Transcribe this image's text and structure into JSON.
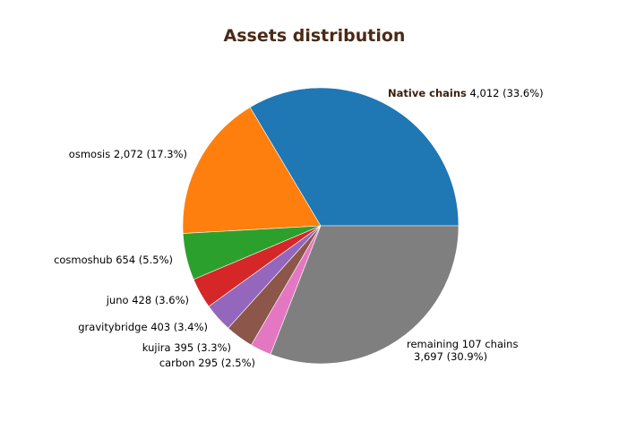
{
  "chart_data": {
    "type": "pie",
    "title": "Assets distribution",
    "start_angle_deg": 0,
    "direction": "counterclockwise",
    "slices": [
      {
        "name": "Native chains",
        "value_text": "4,012 (33.6%)",
        "value": 4012,
        "percent": 33.6,
        "color": "#1f77b4",
        "emphasis": true
      },
      {
        "name": "osmosis",
        "value_text": "2,072 (17.3%)",
        "value": 2072,
        "percent": 17.3,
        "color": "#ff7f0e"
      },
      {
        "name": "cosmoshub",
        "value_text": "654 (5.5%)",
        "value": 654,
        "percent": 5.5,
        "color": "#2ca02c"
      },
      {
        "name": "juno",
        "value_text": "428 (3.6%)",
        "value": 428,
        "percent": 3.6,
        "color": "#d62728"
      },
      {
        "name": "gravitybridge",
        "value_text": "403 (3.4%)",
        "value": 403,
        "percent": 3.4,
        "color": "#9467bd"
      },
      {
        "name": "kujira",
        "value_text": "395 (3.3%)",
        "value": 395,
        "percent": 3.3,
        "color": "#8c564b"
      },
      {
        "name": "carbon",
        "value_text": "295 (2.5%)",
        "value": 295,
        "percent": 2.5,
        "color": "#e377c2"
      },
      {
        "name": "remaining 107 chains",
        "value_text": "3,697 (30.9%)",
        "value": 3697,
        "percent": 30.9,
        "color": "#7f7f7f"
      }
    ]
  }
}
